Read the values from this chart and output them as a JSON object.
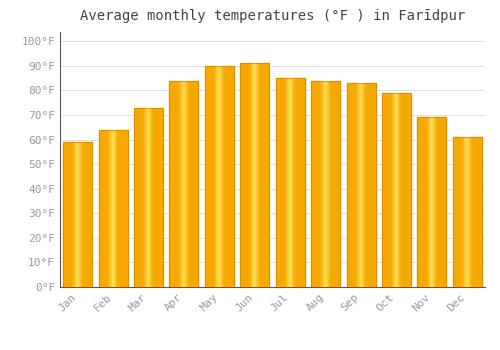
{
  "title": "Average monthly temperatures (°F ) in Farīdpur",
  "months": [
    "Jan",
    "Feb",
    "Mar",
    "Apr",
    "May",
    "Jun",
    "Jul",
    "Aug",
    "Sep",
    "Oct",
    "Nov",
    "Dec"
  ],
  "values": [
    59,
    64,
    73,
    84,
    90,
    91,
    85,
    84,
    83,
    79,
    69,
    61
  ],
  "bar_color_left": "#F5A800",
  "bar_color_center": "#FFD050",
  "bar_color_right": "#F5A800",
  "bar_edge_color": "#C8880A",
  "background_color": "#FFFFFF",
  "yticks": [
    0,
    10,
    20,
    30,
    40,
    50,
    60,
    70,
    80,
    90,
    100
  ],
  "ylim": [
    0,
    104
  ],
  "grid_color": "#E0E0E0",
  "tick_label_color": "#999999",
  "title_color": "#444444",
  "title_fontsize": 10,
  "bar_width": 0.82
}
